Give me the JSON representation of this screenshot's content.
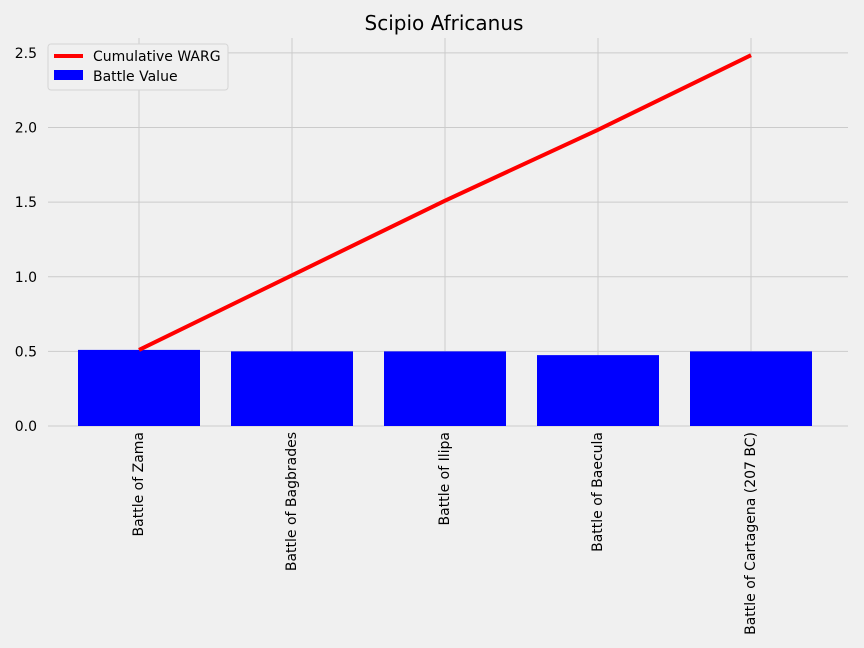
{
  "chart_data": {
    "type": "bar",
    "title": "Scipio Africanus",
    "xlabel": "",
    "ylabel": "",
    "categories": [
      "Battle of Zama",
      "Battle of Bagbrades",
      "Battle of Ilipa",
      "Battle of Baecula",
      "Battle of Cartagena (207 BC)"
    ],
    "series": [
      {
        "name": "Battle Value",
        "type": "bar",
        "color": "#0000ff",
        "values": [
          0.51,
          0.5,
          0.5,
          0.475,
          0.5
        ]
      },
      {
        "name": "Cumulative WARG",
        "type": "line",
        "color": "#ff0000",
        "values": [
          0.51,
          1.01,
          1.51,
          1.985,
          2.485
        ]
      }
    ],
    "ylim": [
      0,
      2.6
    ],
    "yticks": [
      "0.0",
      "0.5",
      "1.0",
      "1.5",
      "2.0",
      "2.5"
    ],
    "grid": true,
    "legend_position": "top-left",
    "background_color": "#f0f0f0",
    "grid_color": "#cbcbcb"
  }
}
